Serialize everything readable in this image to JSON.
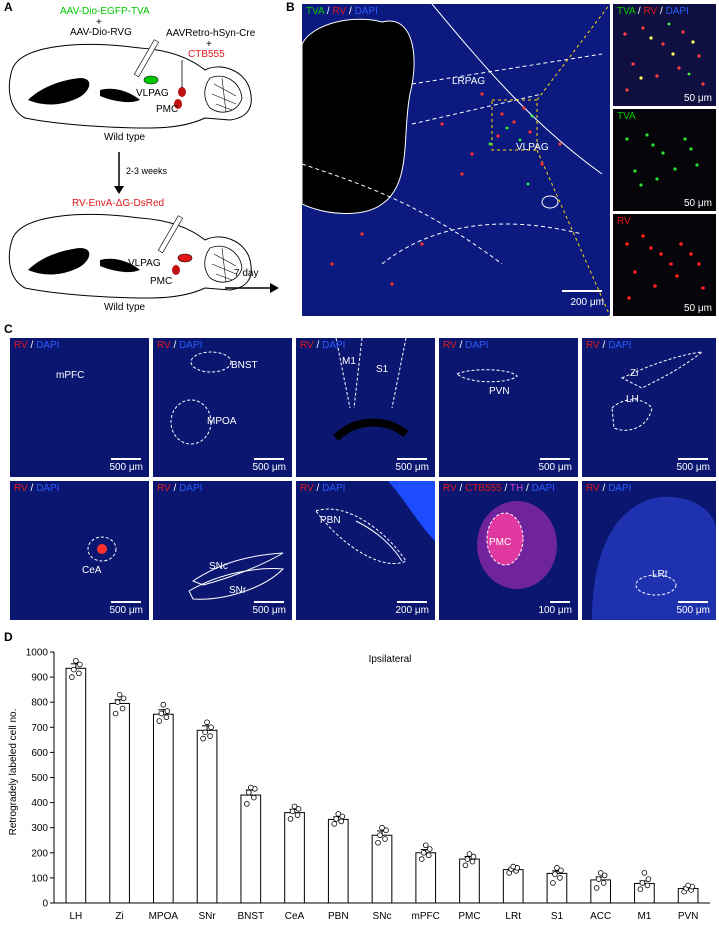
{
  "panels": {
    "a": "A",
    "b": "B",
    "c": "C",
    "d": "D"
  },
  "panelA": {
    "virus1": "AAV-Dio-EGFP-TVA",
    "plus1": "+",
    "virus2": "AAV-Dio-RVG",
    "virus3": "AAVRetro-hSyn-Cre",
    "plus2": "+",
    "tracer": "CTB555",
    "vlpag1": "VLPAG",
    "pmc1": "PMC",
    "wt1": "Wild type",
    "interval": "2-3 weeks",
    "rv": "RV-EnvA-ΔG-DsRed",
    "vlpag2": "VLPAG",
    "pmc2": "PMC",
    "wt2": "Wild type",
    "days": "7 day"
  },
  "panelB": {
    "main": {
      "tva": "TVA",
      "sep1": " / ",
      "rv": "RV",
      "sep2": " / ",
      "dapi": "DAPI",
      "lrpag": "LRPAG",
      "vlpag": "VLPAG",
      "scale": "200 μm"
    },
    "inset1": {
      "tva": "TVA",
      "sep1": " / ",
      "rv": "RV",
      "sep2": " / ",
      "dapi": "DAPI",
      "scale": "50 μm"
    },
    "inset2": {
      "tva": "TVA",
      "scale": "50 μm"
    },
    "inset3": {
      "rv": "RV",
      "scale": "50 μm"
    }
  },
  "panelC": [
    {
      "a": "RV",
      "s": " / ",
      "b": "DAPI",
      "regions": [
        "mPFC"
      ],
      "scale": "500 μm"
    },
    {
      "a": "RV",
      "s": " / ",
      "b": "DAPI",
      "regions": [
        "BNST",
        "MPOA"
      ],
      "scale": "500 μm"
    },
    {
      "a": "RV",
      "s": " / ",
      "b": "DAPI",
      "regions": [
        "M1",
        "S1"
      ],
      "scale": "500 μm"
    },
    {
      "a": "RV",
      "s": " / ",
      "b": "DAPI",
      "regions": [
        "PVN"
      ],
      "scale": "500 μm"
    },
    {
      "a": "RV",
      "s": " / ",
      "b": "DAPI",
      "regions": [
        "Zi",
        "LH"
      ],
      "scale": "500 μm"
    },
    {
      "a": "RV",
      "s": " / ",
      "b": "DAPI",
      "regions": [
        "CeA"
      ],
      "scale": "500 μm"
    },
    {
      "a": "RV",
      "s": " / ",
      "b": "DAPI",
      "regions": [
        "SNc",
        "SNr"
      ],
      "scale": "500 μm"
    },
    {
      "a": "RV",
      "s": " / ",
      "b": "DAPI",
      "regions": [
        "PBN"
      ],
      "scale": "200 μm"
    },
    {
      "a": "RV",
      "s": " / ",
      "c": "CTB555",
      "s2": " / ",
      "d": "TH",
      "s3": " / ",
      "b": "DAPI",
      "regions": [
        "PMC"
      ],
      "scale": "100 μm"
    },
    {
      "a": "RV",
      "s": " / ",
      "b": "DAPI",
      "regions": [
        "LRt"
      ],
      "scale": "500 μm"
    }
  ],
  "colors": {
    "green": "#00c800",
    "red": "#e01818",
    "blue": "#2a5cff",
    "magenta": "#d040d0",
    "tissue": "#0a1670"
  },
  "chart_data": {
    "type": "bar",
    "title": "Ipsilateral",
    "ylabel": "Retrogradely labeled cell no.",
    "xlabel": "",
    "ylim": [
      0,
      1000
    ],
    "yticks": [
      0,
      100,
      200,
      300,
      400,
      500,
      600,
      700,
      800,
      900,
      1000
    ],
    "categories": [
      "LH",
      "Zi",
      "MPOA",
      "SNr",
      "BNST",
      "CeA",
      "PBN",
      "SNc",
      "mPFC",
      "PMC",
      "LRt",
      "S1",
      "ACC",
      "M1",
      "PVN"
    ],
    "values": [
      935,
      795,
      752,
      688,
      430,
      360,
      333,
      270,
      200,
      175,
      133,
      118,
      92,
      78,
      58
    ],
    "errors": [
      18,
      15,
      18,
      18,
      20,
      13,
      10,
      17,
      13,
      10,
      5,
      10,
      12,
      10,
      6
    ],
    "points": [
      [
        900,
        915,
        930,
        950,
        965
      ],
      [
        755,
        775,
        800,
        815,
        830
      ],
      [
        725,
        740,
        755,
        765,
        790
      ],
      [
        655,
        665,
        680,
        700,
        720
      ],
      [
        395,
        420,
        440,
        455,
        460
      ],
      [
        335,
        350,
        365,
        375,
        385
      ],
      [
        315,
        325,
        335,
        345,
        355
      ],
      [
        240,
        255,
        270,
        290,
        300
      ],
      [
        175,
        190,
        200,
        215,
        230
      ],
      [
        150,
        165,
        175,
        185,
        195
      ],
      [
        120,
        128,
        135,
        140,
        145
      ],
      [
        80,
        100,
        115,
        130,
        140
      ],
      [
        60,
        80,
        95,
        110,
        120
      ],
      [
        55,
        70,
        80,
        95,
        120
      ],
      [
        45,
        52,
        58,
        65,
        70
      ]
    ],
    "bar_color": "#ffffff",
    "edge_color": "#000000"
  }
}
